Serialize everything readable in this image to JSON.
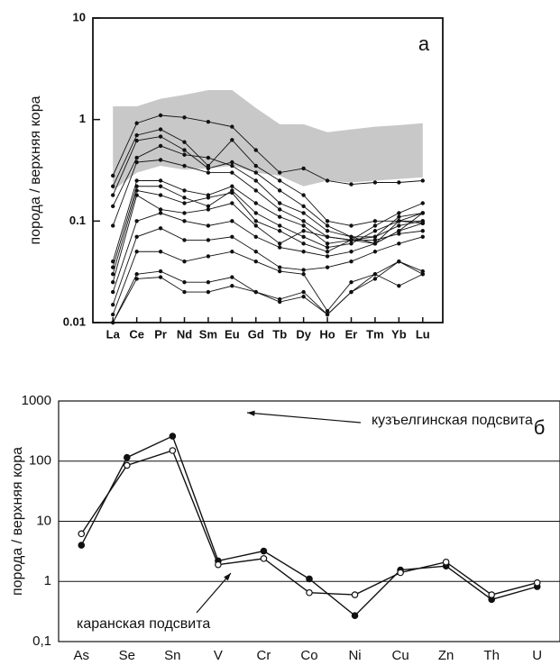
{
  "chart_data": [
    {
      "type": "line",
      "log_y": true,
      "grid": false,
      "ylabel": "порода / верхняя кора",
      "annotation": "а",
      "categories": [
        "La",
        "Ce",
        "Pr",
        "Nd",
        "Sm",
        "Eu",
        "Gd",
        "Tb",
        "Dy",
        "Ho",
        "Er",
        "Tm",
        "Yb",
        "Lu"
      ],
      "ylim": [
        0.01,
        10
      ],
      "yticks": [
        0.01,
        0.1,
        1,
        10
      ],
      "band": {
        "color": "#c8c8c8",
        "upper": [
          1.35,
          1.35,
          1.6,
          1.75,
          1.95,
          1.95,
          1.3,
          0.9,
          0.9,
          0.75,
          0.8,
          0.85,
          0.88,
          0.92
        ],
        "lower": [
          0.2,
          0.3,
          0.35,
          0.32,
          0.33,
          0.35,
          0.3,
          0.28,
          0.22,
          0.25,
          0.24,
          0.25,
          0.26,
          0.27
        ]
      },
      "series": [
        {
          "color": "#111",
          "marker": "dot",
          "values": [
            0.28,
            0.92,
            1.1,
            1.05,
            0.95,
            0.85,
            0.5,
            0.3,
            0.33,
            0.25,
            0.23,
            0.24,
            0.24,
            0.25
          ]
        },
        {
          "color": "#111",
          "marker": "dot",
          "values": [
            0.22,
            0.7,
            0.8,
            0.6,
            0.35,
            0.63,
            0.35,
            0.25,
            0.18,
            0.1,
            0.09,
            0.1,
            0.1,
            0.12
          ]
        },
        {
          "color": "#111",
          "marker": "dot",
          "values": [
            0.18,
            0.62,
            0.68,
            0.5,
            0.33,
            0.38,
            0.3,
            0.2,
            0.14,
            0.09,
            0.07,
            0.07,
            0.09,
            0.1
          ]
        },
        {
          "color": "#111",
          "marker": "dot",
          "values": [
            0.14,
            0.42,
            0.55,
            0.45,
            0.42,
            0.35,
            0.25,
            0.15,
            0.12,
            0.08,
            0.07,
            0.06,
            0.08,
            0.095
          ]
        },
        {
          "color": "#111",
          "marker": "dot",
          "values": [
            0.09,
            0.38,
            0.4,
            0.35,
            0.3,
            0.3,
            0.2,
            0.13,
            0.1,
            0.07,
            0.065,
            0.065,
            0.075,
            0.08
          ]
        },
        {
          "color": "#111",
          "marker": "dot",
          "values": [
            0.04,
            0.25,
            0.25,
            0.2,
            0.18,
            0.22,
            0.15,
            0.11,
            0.09,
            0.06,
            0.065,
            0.07,
            0.11,
            0.12
          ]
        },
        {
          "color": "#111",
          "marker": "dot",
          "values": [
            0.035,
            0.22,
            0.22,
            0.17,
            0.14,
            0.2,
            0.12,
            0.09,
            0.07,
            0.055,
            0.06,
            0.08,
            0.1,
            0.1
          ]
        },
        {
          "color": "#111",
          "marker": "dot",
          "values": [
            0.03,
            0.2,
            0.18,
            0.15,
            0.17,
            0.19,
            0.1,
            0.08,
            0.06,
            0.05,
            0.065,
            0.09,
            0.12,
            0.15
          ]
        },
        {
          "color": "#111",
          "marker": "dot",
          "values": [
            0.025,
            0.18,
            0.13,
            0.12,
            0.13,
            0.15,
            0.09,
            0.06,
            0.08,
            0.07,
            0.065,
            0.06,
            0.1,
            0.095
          ]
        },
        {
          "color": "#111",
          "marker": "dot",
          "values": [
            0.02,
            0.1,
            0.12,
            0.1,
            0.09,
            0.1,
            0.07,
            0.055,
            0.05,
            0.045,
            0.05,
            0.06,
            0.08,
            0.12
          ]
        },
        {
          "color": "#111",
          "marker": "dot",
          "values": [
            0.015,
            0.07,
            0.085,
            0.065,
            0.065,
            0.07,
            0.05,
            0.035,
            0.033,
            0.035,
            0.04,
            0.05,
            0.06,
            0.07
          ]
        },
        {
          "color": "#111",
          "marker": "dot",
          "values": [
            0.012,
            0.05,
            0.05,
            0.04,
            0.045,
            0.05,
            0.04,
            0.032,
            0.03,
            0.013,
            0.025,
            0.03,
            0.04,
            0.03
          ]
        },
        {
          "color": "#111",
          "marker": "dot",
          "values": [
            0.01,
            0.03,
            0.032,
            0.025,
            0.025,
            0.028,
            0.02,
            0.017,
            0.02,
            0.012,
            0.02,
            0.03,
            0.023,
            0.03
          ]
        },
        {
          "color": "#111",
          "marker": "dot",
          "values": [
            0.01,
            0.027,
            0.028,
            0.02,
            0.02,
            0.023,
            0.02,
            0.016,
            0.018,
            0.012,
            0.02,
            0.027,
            0.04,
            0.032
          ]
        }
      ]
    },
    {
      "type": "line",
      "log_y": true,
      "grid": true,
      "ylabel": "порода / верхняя кора",
      "annotation": "б",
      "categories": [
        "As",
        "Se",
        "Sn",
        "V",
        "Cr",
        "Co",
        "Ni",
        "Cu",
        "Zn",
        "Th",
        "U"
      ],
      "ylim": [
        0.1,
        1000
      ],
      "yticks": [
        {
          "value": 0.1,
          "label": "0,1"
        },
        1,
        10,
        100,
        1000
      ],
      "series": [
        {
          "name": "кузъелгинская подсвита",
          "color": "#111",
          "marker": "filled",
          "values": [
            4,
            115,
            260,
            2.2,
            3.2,
            1.1,
            0.27,
            1.55,
            1.8,
            0.5,
            0.82
          ]
        },
        {
          "name": "каранская подсвита",
          "color": "#111",
          "marker": "open",
          "values": [
            6.2,
            85,
            150,
            1.9,
            2.4,
            0.65,
            0.6,
            1.4,
            2.1,
            0.6,
            0.95
          ]
        }
      ]
    }
  ]
}
